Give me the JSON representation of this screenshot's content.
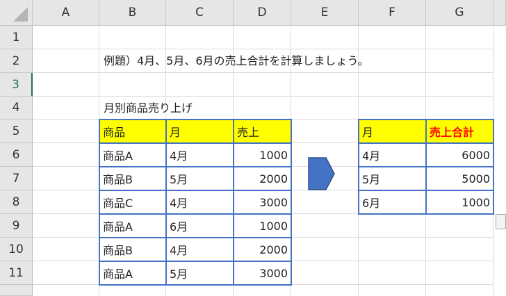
{
  "columns": [
    "A",
    "B",
    "C",
    "D",
    "E",
    "F",
    "G"
  ],
  "rows": [
    "1",
    "2",
    "3",
    "4",
    "5",
    "6",
    "7",
    "8",
    "9",
    "10",
    "11"
  ],
  "selected_row": "3",
  "instruction": "例題）4月、5月、6月の売上合計を計算しましょう。",
  "table_title": "月別商品売り上げ",
  "sales_table": {
    "headers": [
      "商品",
      "月",
      "売上"
    ],
    "rows": [
      [
        "商品A",
        "4月",
        "1000"
      ],
      [
        "商品B",
        "5月",
        "2000"
      ],
      [
        "商品C",
        "4月",
        "3000"
      ],
      [
        "商品A",
        "6月",
        "1000"
      ],
      [
        "商品B",
        "4月",
        "2000"
      ],
      [
        "商品A",
        "5月",
        "3000"
      ]
    ]
  },
  "summary_table": {
    "headers": [
      "月",
      "売上合計"
    ],
    "rows": [
      [
        "4月",
        "6000"
      ],
      [
        "5月",
        "5000"
      ],
      [
        "6月",
        "1000"
      ]
    ]
  },
  "colors": {
    "header_fill": "#ffff00",
    "border": "#4472c4",
    "total_header_text": "#ff0000",
    "arrow": "#4472c4"
  },
  "icons": {
    "arrow": "pentagon-arrow-right",
    "paste_options": "paste-options-icon"
  }
}
